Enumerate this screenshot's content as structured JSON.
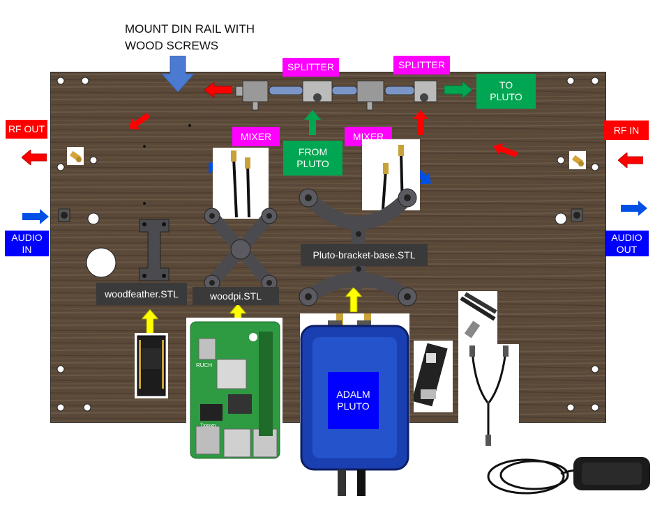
{
  "title": {
    "text": "MOUNT DIN RAIL WITH\nWOOD SCREWS"
  },
  "labels": {
    "splitter_left": "SPLITTER",
    "splitter_right": "SPLITTER",
    "to_pluto": "TO\nPLUTO",
    "from_pluto": "FROM\nPLUTO",
    "mixer_left": "MIXER",
    "mixer_right": "MIXER",
    "rf_out": "RF OUT",
    "rf_in": "RF IN",
    "audio_in": "AUDIO\nIN",
    "audio_out": "AUDIO\nOUT",
    "adalm_pluto": "ADALM\nPLUTO"
  },
  "stl_labels": {
    "woodfeather": "woodfeather.STL",
    "woodpi": "woodpi.STL",
    "pluto_bracket": "Pluto-bracket-base.STL"
  },
  "pi_board": {
    "ruch": "RUCH",
    "chip": "Txxxxn"
  },
  "colors": {
    "board_wood": "#5b4a3b",
    "arrow_red": "#ff0000",
    "arrow_green": "#00a651",
    "arrow_blue": "#0050e6",
    "arrow_yellow": "#ffff00",
    "label_magenta": "#ff00ff",
    "pluto_blue": "#1f4fd6",
    "bracket": "#4a4a4f"
  }
}
